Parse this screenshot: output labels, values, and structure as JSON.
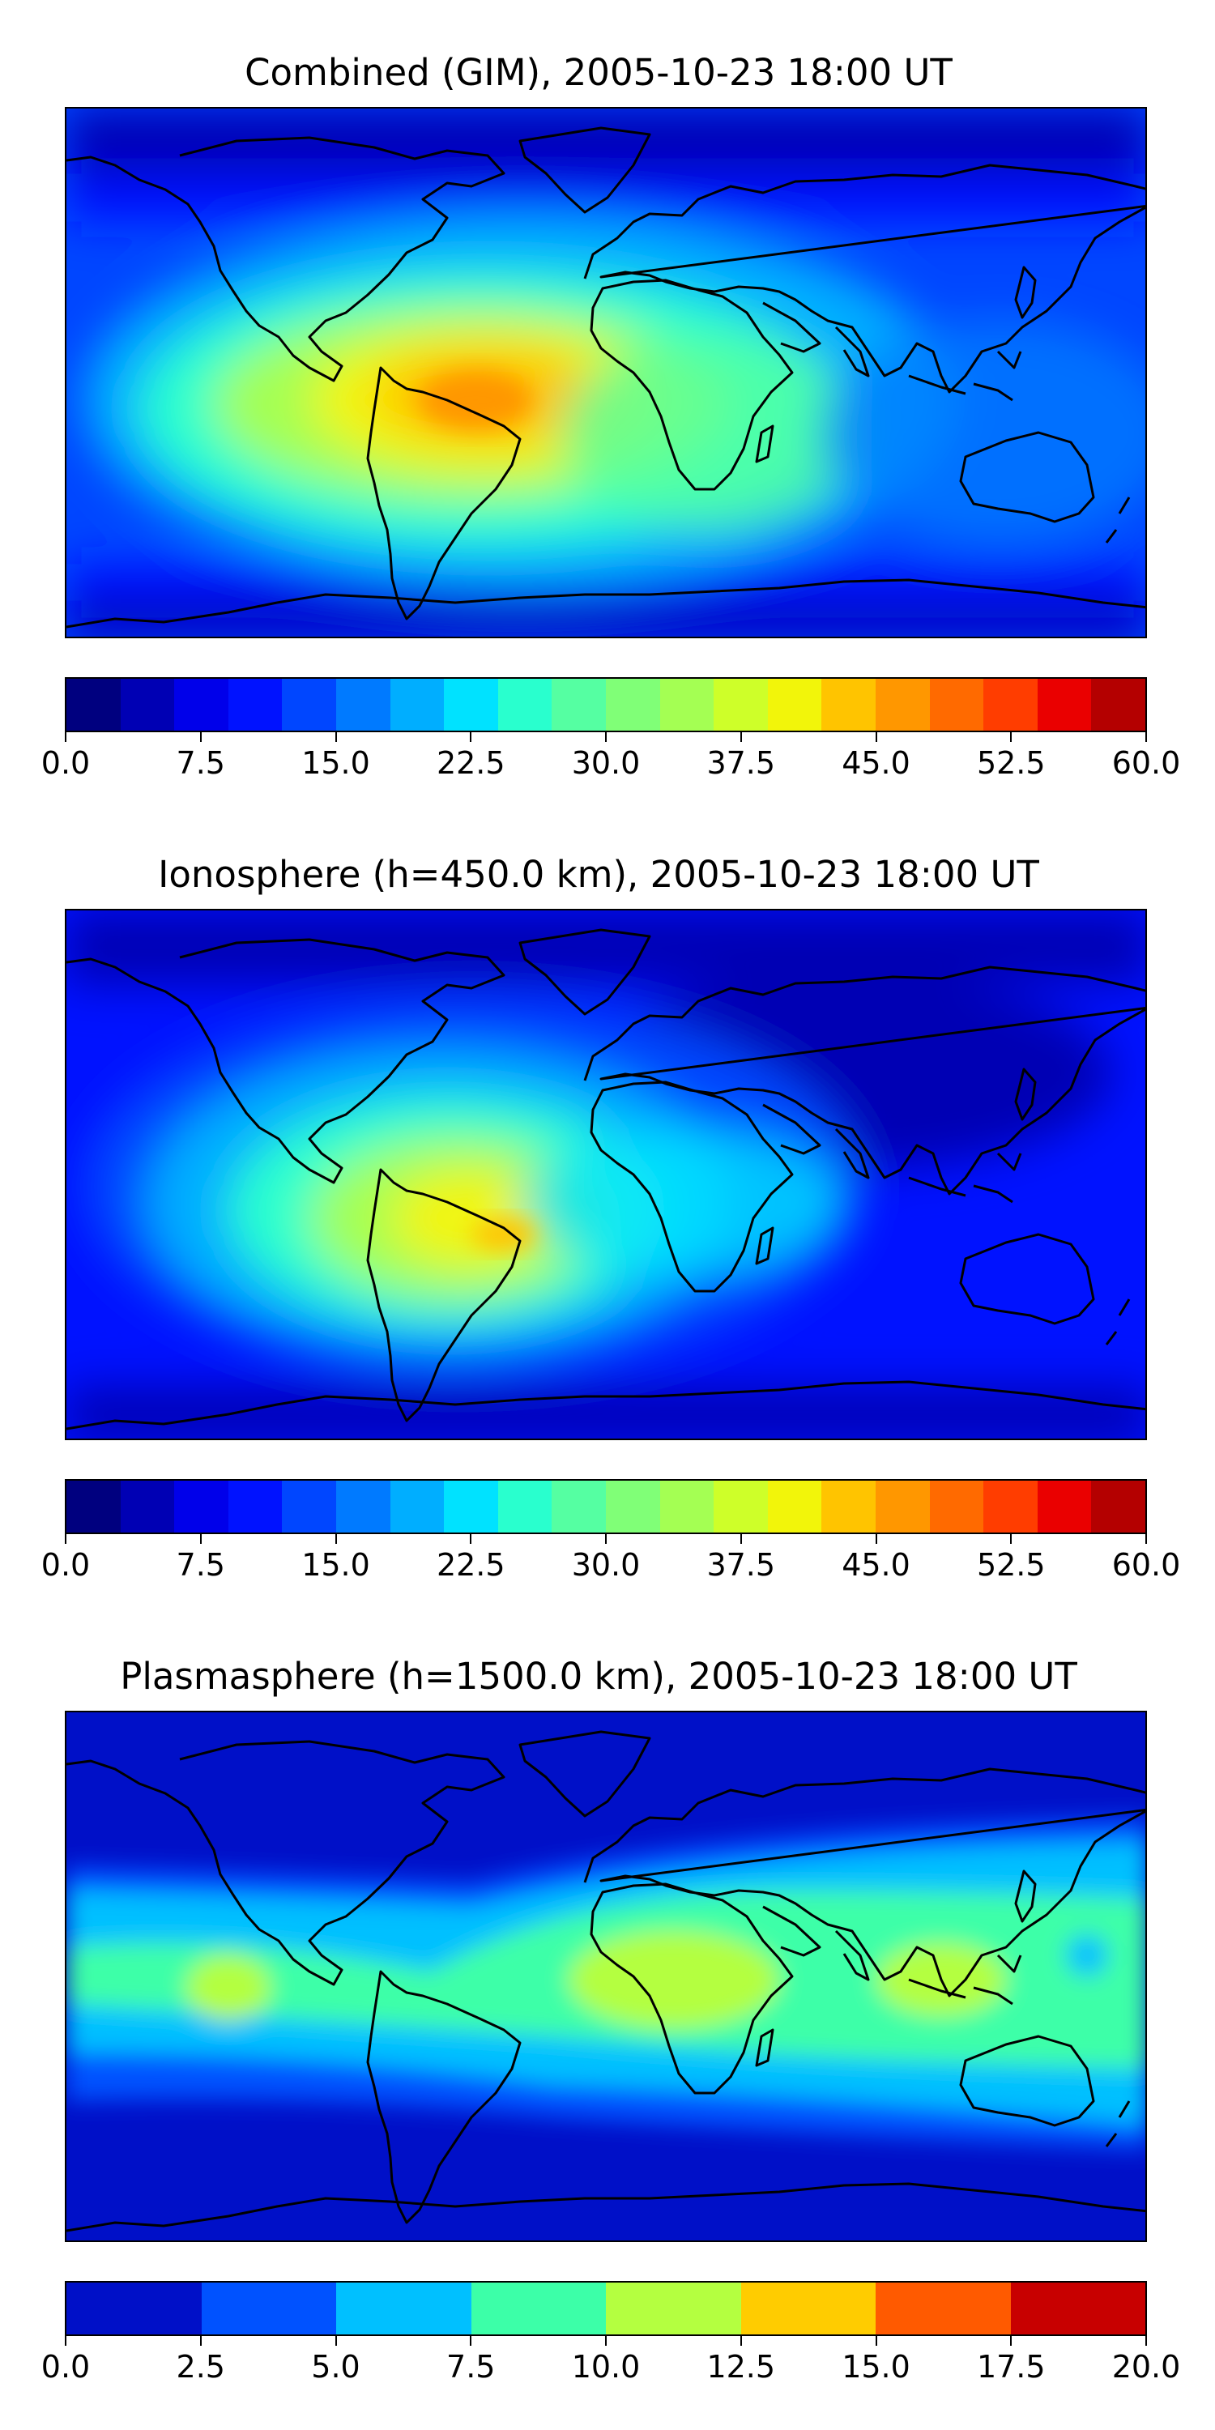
{
  "chart_data": [
    {
      "type": "heatmap",
      "title": "Combined (GIM), 2005-10-23 18:00 UT",
      "projection": "global lat-lon map with coastlines",
      "colormap": "jet",
      "colorbar": {
        "range": [
          0.0,
          60.0
        ],
        "levels": 24,
        "tick_labels": [
          "0.0",
          "7.5",
          "15.0",
          "22.5",
          "30.0",
          "37.5",
          "45.0",
          "52.5",
          "60.0"
        ],
        "colors": [
          "#00007f",
          "#0000b4",
          "#0000ea",
          "#0012ff",
          "#0046ff",
          "#007aff",
          "#00aeff",
          "#00e2ff",
          "#29ffce",
          "#55ffa2",
          "#80ff77",
          "#a4ff53",
          "#ceff29",
          "#f2f50a",
          "#ffc400",
          "#ff9700",
          "#ff6a00",
          "#ff3d00",
          "#ea0000",
          "#b40000",
          "#7f0000",
          "#7f0000",
          "#7f0000",
          "#7f0000"
        ]
      },
      "features": [
        {
          "label": "maximum over central/eastern South America and the South Atlantic",
          "value": 45
        },
        {
          "label": "equatorial Africa",
          "value": 27
        },
        {
          "label": "Asia / Western Pacific",
          "value": 10
        },
        {
          "label": "polar regions",
          "value": 5
        }
      ]
    },
    {
      "type": "heatmap",
      "title": "Ionosphere  (h=450.0 km), 2005-10-23 18:00 UT",
      "projection": "global lat-lon map with coastlines",
      "colormap": "jet",
      "colorbar": {
        "range": [
          0.0,
          60.0
        ],
        "levels": 24,
        "tick_labels": [
          "0.0",
          "7.5",
          "15.0",
          "22.5",
          "30.0",
          "37.5",
          "45.0",
          "52.5",
          "60.0"
        ],
        "colors": [
          "#00007f",
          "#0000b4",
          "#0000ea",
          "#0012ff",
          "#0046ff",
          "#007aff",
          "#00aeff",
          "#00e2ff",
          "#29ffce",
          "#55ffa2",
          "#80ff77",
          "#a4ff53",
          "#ceff29",
          "#f2f50a",
          "#ffc400",
          "#ff9700",
          "#ff6a00",
          "#ff3d00",
          "#ea0000",
          "#b40000",
          "#7f0000",
          "#7f0000",
          "#7f0000",
          "#7f0000"
        ]
      },
      "features": [
        {
          "label": "maximum over central South America",
          "value": 37
        },
        {
          "label": "equatorial Atlantic / West Africa",
          "value": 22
        },
        {
          "label": "Asia / Western Pacific",
          "value": 5
        },
        {
          "label": "polar regions",
          "value": 4
        }
      ]
    },
    {
      "type": "heatmap",
      "title": "Plasmasphere (h=1500.0 km), 2005-10-23 18:00 UT",
      "projection": "global lat-lon map with coastlines",
      "colormap": "jet",
      "colorbar": {
        "range": [
          0.0,
          20.0
        ],
        "levels": 8,
        "tick_labels": [
          "0.0",
          "2.5",
          "5.0",
          "7.5",
          "10.0",
          "12.5",
          "15.0",
          "17.5",
          "20.0"
        ],
        "colors": [
          "#0010c8",
          "#0052ff",
          "#00c0ff",
          "#3cffa8",
          "#b4ff40",
          "#ffcc00",
          "#ff5a00",
          "#c80000"
        ]
      },
      "features": [
        {
          "label": "Africa",
          "value": 11
        },
        {
          "label": "Maritime Continent / Indonesia",
          "value": 11
        },
        {
          "label": "central Pacific",
          "value": 11
        },
        {
          "label": "low-latitude band",
          "value": 8
        },
        {
          "label": "high latitudes",
          "value": 1.5
        }
      ]
    }
  ]
}
